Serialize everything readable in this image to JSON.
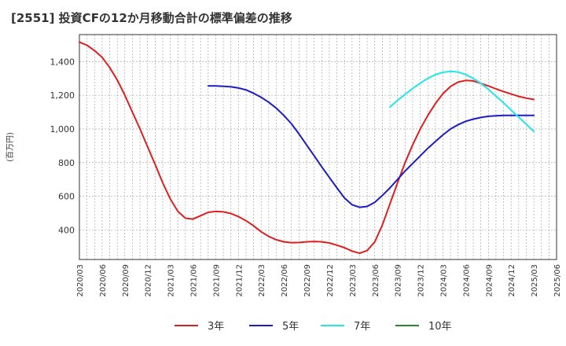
{
  "chart_data": {
    "type": "line",
    "title": "[2551]  投資CFの12か月移動合計の標準偏差の推移",
    "ylabel": "(百万円)",
    "xlabel": "",
    "grid": true,
    "legend_position": "bottom",
    "ylim": [
      225,
      1560
    ],
    "y_ticks": [
      400,
      600,
      800,
      1000,
      1200,
      1400
    ],
    "y_tick_labels": [
      "400",
      "600",
      "800",
      "1,000",
      "1,200",
      "1,400"
    ],
    "x_ticks": [
      "2020/03",
      "2020/06",
      "2020/09",
      "2020/12",
      "2021/03",
      "2021/06",
      "2021/09",
      "2021/12",
      "2022/03",
      "2022/06",
      "2022/09",
      "2022/12",
      "2023/03",
      "2023/06",
      "2023/09",
      "2023/12",
      "2024/03",
      "2024/06",
      "2024/09",
      "2024/12",
      "2025/03",
      "2025/06"
    ],
    "series": [
      {
        "name": "3年",
        "color": "#dd1f1f",
        "x": [
          "2020/03",
          "2020/04",
          "2020/05",
          "2020/06",
          "2020/07",
          "2020/08",
          "2020/09",
          "2020/10",
          "2020/11",
          "2020/12",
          "2021/01",
          "2021/02",
          "2021/03",
          "2021/04",
          "2021/05",
          "2021/06",
          "2021/07",
          "2021/08",
          "2021/09",
          "2021/10",
          "2021/11",
          "2021/12",
          "2022/01",
          "2022/02",
          "2022/03",
          "2022/04",
          "2022/05",
          "2022/06",
          "2022/07",
          "2022/08",
          "2022/09",
          "2022/10",
          "2022/11",
          "2022/12",
          "2023/01",
          "2023/02",
          "2023/03",
          "2023/04",
          "2023/05",
          "2023/06",
          "2023/07",
          "2023/08",
          "2023/09",
          "2023/10",
          "2023/11",
          "2023/12",
          "2024/01",
          "2024/02",
          "2024/03",
          "2024/04",
          "2024/05",
          "2024/06",
          "2024/07",
          "2024/08",
          "2024/09",
          "2024/10",
          "2024/11",
          "2024/12",
          "2025/01",
          "2025/02",
          "2025/03"
        ],
        "values": [
          1515,
          1497,
          1465,
          1425,
          1365,
          1290,
          1200,
          1100,
          1000,
          895,
          790,
          680,
          585,
          510,
          470,
          465,
          485,
          505,
          510,
          508,
          498,
          480,
          455,
          425,
          390,
          362,
          342,
          330,
          325,
          326,
          330,
          332,
          330,
          323,
          310,
          295,
          275,
          262,
          278,
          330,
          430,
          555,
          680,
          800,
          905,
          1000,
          1080,
          1150,
          1210,
          1252,
          1278,
          1288,
          1285,
          1270,
          1255,
          1238,
          1222,
          1207,
          1193,
          1183,
          1175
        ]
      },
      {
        "name": "5年",
        "color": "#1c1cc4",
        "x": [
          "2021/08",
          "2021/09",
          "2021/10",
          "2021/11",
          "2021/12",
          "2022/01",
          "2022/02",
          "2022/03",
          "2022/04",
          "2022/05",
          "2022/06",
          "2022/07",
          "2022/08",
          "2022/09",
          "2022/10",
          "2022/11",
          "2022/12",
          "2023/01",
          "2023/02",
          "2023/03",
          "2023/04",
          "2023/05",
          "2023/06",
          "2023/07",
          "2023/08",
          "2023/09",
          "2023/10",
          "2023/11",
          "2023/12",
          "2024/01",
          "2024/02",
          "2024/03",
          "2024/04",
          "2024/05",
          "2024/06",
          "2024/07",
          "2024/08",
          "2024/09",
          "2024/10",
          "2024/11",
          "2024/12",
          "2025/01",
          "2025/02",
          "2025/03"
        ],
        "values": [
          1255,
          1255,
          1253,
          1250,
          1243,
          1232,
          1212,
          1188,
          1158,
          1123,
          1080,
          1030,
          970,
          905,
          840,
          775,
          712,
          650,
          590,
          550,
          535,
          540,
          565,
          605,
          650,
          700,
          750,
          795,
          840,
          885,
          925,
          965,
          1000,
          1025,
          1045,
          1058,
          1068,
          1075,
          1078,
          1080,
          1080,
          1080,
          1080,
          1080
        ]
      },
      {
        "name": "7年",
        "color": "#22e6ea",
        "x": [
          "2023/08",
          "2023/09",
          "2023/10",
          "2023/11",
          "2023/12",
          "2024/01",
          "2024/02",
          "2024/03",
          "2024/04",
          "2024/05",
          "2024/06",
          "2024/07",
          "2024/08",
          "2024/09",
          "2024/10",
          "2024/11",
          "2024/12",
          "2025/01",
          "2025/02",
          "2025/03"
        ],
        "values": [
          1130,
          1170,
          1205,
          1240,
          1272,
          1300,
          1322,
          1336,
          1342,
          1338,
          1323,
          1300,
          1270,
          1235,
          1195,
          1155,
          1112,
          1070,
          1028,
          985
        ]
      },
      {
        "name": "10年",
        "color": "#2a8a2a",
        "x": [],
        "values": []
      }
    ]
  }
}
